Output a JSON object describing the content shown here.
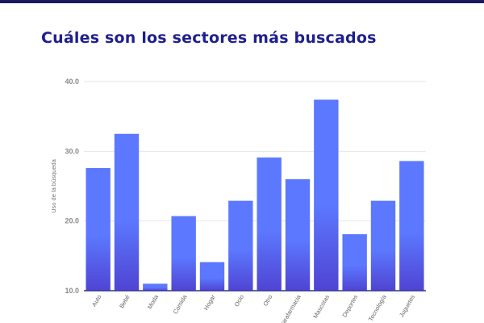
{
  "page": {
    "top_bar_color": "#1c1a5e",
    "title_color": "#1f1f8e"
  },
  "chart_data": {
    "type": "bar",
    "title": "Cuáles son los sectores más buscados",
    "ylabel": "Uso de la búsqueda",
    "xlabel": "",
    "ylim": [
      10,
      40
    ],
    "yticks": [
      10,
      20,
      30,
      40
    ],
    "ytick_labels": [
      "10.0",
      "20.0",
      "30.0",
      "40.0"
    ],
    "grid": true,
    "legend": "none",
    "categories": [
      "Auto",
      "Bebé",
      "Moda",
      "Comida",
      "Hogar",
      "Ocio",
      "Otro",
      "Farmacia",
      "Mascotas",
      "Deportes",
      "Tecnología",
      "Juguetes"
    ],
    "category_labels": [
      "Auto",
      "Bebé",
      "Moda",
      "Comida",
      "Hogar",
      "Ocio",
      "Otro",
      "Parafarmacia",
      "Mascotas",
      "Deportes",
      "Tecnología",
      "Juguetes"
    ],
    "values": [
      27.6,
      32.5,
      11.0,
      20.7,
      14.1,
      22.9,
      29.1,
      26.0,
      37.4,
      18.1,
      22.9,
      28.6
    ],
    "colors": {
      "bar_top": "#5c78ff",
      "bar_bottom": "#4f44d2",
      "grid": "#e6e6e6",
      "axis": "#333399"
    }
  }
}
